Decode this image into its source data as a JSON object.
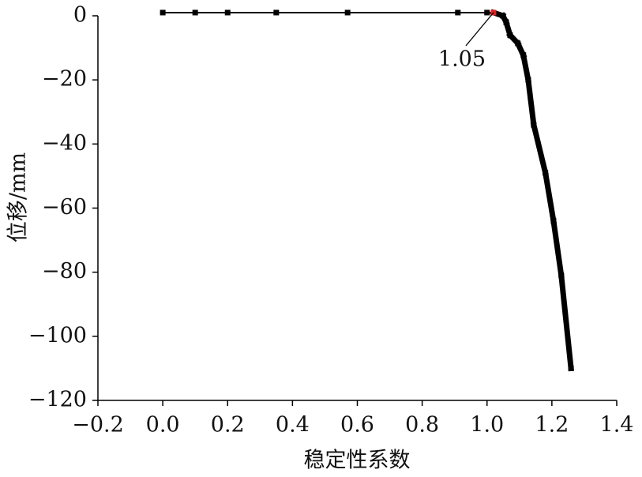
{
  "chart_data": {
    "type": "line",
    "x_label": "稳定性系数",
    "y_label": "位移/mm",
    "x": [
      0,
      0.1,
      0.2,
      0.35,
      0.57,
      0.91,
      1.0,
      1.02,
      1.049,
      1.059,
      1.071,
      1.095,
      1.112,
      1.127,
      1.144,
      1.18,
      1.205,
      1.229,
      1.259
    ],
    "values": [
      1,
      1,
      1,
      1,
      1,
      1,
      1,
      1,
      0,
      -2,
      -6,
      -8.6,
      -12.3,
      -20,
      -34,
      -49,
      -64,
      -81,
      -110
    ],
    "color": "#000000",
    "highlight_color": "#e02020",
    "annotation": {
      "label": "1.05",
      "x": 1.02,
      "y": 1
    },
    "xlim": [
      -0.2,
      1.4
    ],
    "xticks": [
      {
        "value": -0.2,
        "label": "−0.2"
      },
      {
        "value": 0,
        "label": "0.0"
      },
      0.2,
      0.4,
      0.6,
      0.8,
      {
        "value": 1,
        "label": "1.0"
      },
      1.2,
      1.4
    ],
    "ylim": [
      -120,
      0
    ],
    "yticks": [
      0,
      {
        "value": -20,
        "label": "−20"
      },
      {
        "value": -40,
        "label": "−40"
      },
      {
        "value": -60,
        "label": "−60"
      },
      {
        "value": -80,
        "label": "−80"
      },
      {
        "value": -100,
        "label": "−100"
      },
      {
        "value": -120,
        "label": "−120"
      }
    ],
    "grid": false
  }
}
